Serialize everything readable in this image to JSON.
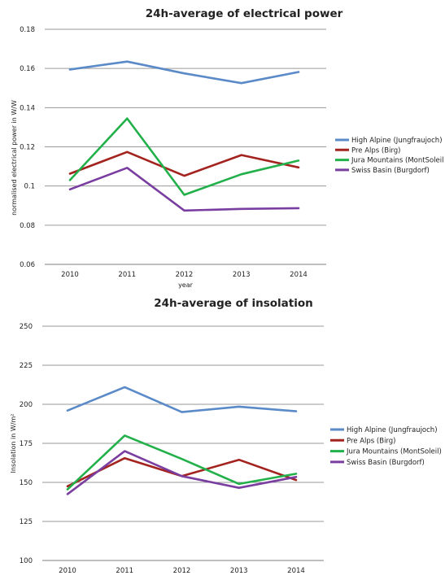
{
  "colors": {
    "high_alpine": "#5b8ac8",
    "pre_alps": "#a3231f",
    "jura": "#22b04a",
    "swiss_basin": "#7a3ea1"
  },
  "chart_data": [
    {
      "type": "line",
      "title": "24h-average of electrical power",
      "xlabel": "year",
      "ylabel": "normalised electrical power in W/W",
      "categories": [
        "2010",
        "2011",
        "2012",
        "2013",
        "2014"
      ],
      "ylim": [
        0.06,
        0.18
      ],
      "yticks": [
        "0.06",
        "0.08",
        "0.1",
        "0.12",
        "0.14",
        "0.16",
        "0.18"
      ],
      "grid": true,
      "legend_position": "right",
      "series": [
        {
          "name": "High Alpine (Jungfraujoch)",
          "color_key": "high_alpine",
          "values": [
            0.1595,
            0.1635,
            0.1575,
            0.1525,
            0.1582
          ]
        },
        {
          "name": "Pre Alps (Birg)",
          "color_key": "pre_alps",
          "values": [
            0.1063,
            0.1174,
            0.1052,
            0.1158,
            0.1095
          ]
        },
        {
          "name": "Jura Mountains (MontSoleil",
          "color_key": "jura",
          "values": [
            0.103,
            0.1345,
            0.0955,
            0.106,
            0.113
          ]
        },
        {
          "name": "Swiss Basin (Burgdorf)",
          "color_key": "swiss_basin",
          "values": [
            0.0983,
            0.1093,
            0.0875,
            0.0883,
            0.0887
          ]
        }
      ]
    },
    {
      "type": "line",
      "title": "24h-average of insolation",
      "xlabel": "",
      "ylabel": "Insolation in W/m²",
      "categories": [
        "2010",
        "2011",
        "2012",
        "2013",
        "2014"
      ],
      "ylim": [
        100,
        250
      ],
      "yticks": [
        "100",
        "125",
        "150",
        "175",
        "200",
        "225",
        "250"
      ],
      "grid": true,
      "legend_position": "right",
      "series": [
        {
          "name": "High Alpine (Jungfraujoch)",
          "color_key": "high_alpine",
          "values": [
            196,
            211,
            195,
            198.5,
            195.5
          ]
        },
        {
          "name": "Pre Alps (Birg)",
          "color_key": "pre_alps",
          "values": [
            147.5,
            165.5,
            154,
            164.5,
            151.5
          ]
        },
        {
          "name": "Jura Mountains (MontSoleil)",
          "color_key": "jura",
          "values": [
            145.5,
            180,
            165,
            149,
            155.5
          ]
        },
        {
          "name": "Swiss Basin (Burgdorf)",
          "color_key": "swiss_basin",
          "values": [
            142.5,
            170,
            154,
            146.5,
            153.5
          ]
        }
      ]
    }
  ]
}
